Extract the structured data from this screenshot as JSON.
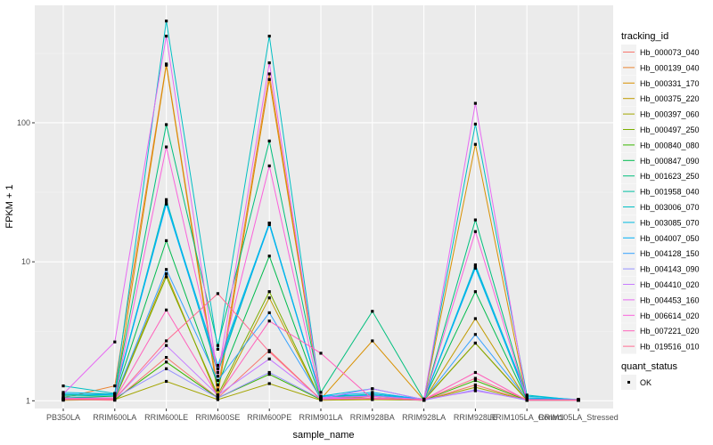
{
  "chart_data": {
    "type": "line",
    "xlabel": "sample_name",
    "ylabel": "FPKM + 1",
    "yscale": "log10",
    "ylim": [
      0.88,
      700
    ],
    "y_ticks": [
      1,
      10,
      100
    ],
    "y_tick_labels": [
      "1",
      "10",
      "100"
    ],
    "grid": true,
    "legend_position": "right",
    "categories": [
      "PB350LA",
      "RRIM600LA",
      "RRIM600LE",
      "RRIM600SE",
      "RRIM600PE",
      "RRIM901LA",
      "RRIM928BA",
      "RRIM928LA",
      "RRIM928LE",
      "RRIM105LA_Control",
      "RRIM105LA_Stressed"
    ],
    "series": [
      {
        "name": "Hb_000073_040",
        "color": "#F8766D",
        "values": [
          1.02,
          1.01,
          2.05,
          1.05,
          2.3,
          1.02,
          1.03,
          1.01,
          1.3,
          1.01,
          1.01
        ]
      },
      {
        "name": "Hb_000139_040",
        "color": "#EA8331",
        "values": [
          1.05,
          1.28,
          265,
          1.2,
          225,
          1.05,
          1.05,
          1.02,
          2.6,
          1.02,
          1.02
        ]
      },
      {
        "name": "Hb_000331_170",
        "color": "#D89000",
        "values": [
          1.03,
          1.05,
          260,
          1.1,
          205,
          1.03,
          2.7,
          1.01,
          70,
          1.02,
          1.01
        ]
      },
      {
        "name": "Hb_000375_220",
        "color": "#C09B00",
        "values": [
          1.02,
          1.03,
          8.2,
          1.05,
          5.5,
          1.02,
          1.05,
          1.01,
          3.9,
          1.01,
          1.01
        ]
      },
      {
        "name": "Hb_000397_060",
        "color": "#A3A500",
        "values": [
          1.01,
          1.02,
          1.38,
          1.02,
          1.33,
          1.01,
          1.02,
          1.01,
          1.25,
          1.01,
          1.01
        ]
      },
      {
        "name": "Hb_000497_250",
        "color": "#7CAE00",
        "values": [
          1.02,
          1.02,
          7.8,
          1.1,
          6.1,
          1.02,
          1.08,
          1.01,
          2.6,
          1.01,
          1.01
        ]
      },
      {
        "name": "Hb_000840_080",
        "color": "#39B600",
        "values": [
          1.02,
          1.02,
          1.9,
          1.05,
          1.55,
          1.02,
          1.04,
          1.01,
          1.4,
          1.01,
          1.01
        ]
      },
      {
        "name": "Hb_000847_090",
        "color": "#00BB4E",
        "values": [
          1.05,
          1.08,
          14.2,
          1.3,
          11,
          1.04,
          1.1,
          1.02,
          6.1,
          1.02,
          1.02
        ]
      },
      {
        "name": "Hb_001623_250",
        "color": "#00BF7D",
        "values": [
          1.1,
          1.12,
          97,
          2.5,
          74,
          1.15,
          4.4,
          1.02,
          20,
          1.05,
          1.02
        ]
      },
      {
        "name": "Hb_001958_040",
        "color": "#00C1A3",
        "values": [
          1.08,
          1.1,
          28,
          1.6,
          19,
          1.08,
          1.1,
          1.02,
          9.2,
          1.03,
          1.01
        ]
      },
      {
        "name": "Hb_003006_070",
        "color": "#00BFC4",
        "values": [
          1.28,
          1.13,
          540,
          2.35,
          420,
          1.05,
          1.12,
          1.03,
          98,
          1.1,
          1.01
        ]
      },
      {
        "name": "Hb_003085_070",
        "color": "#00BAE0",
        "values": [
          1.15,
          1.12,
          27,
          1.8,
          19,
          1.08,
          1.22,
          1.02,
          9.5,
          1.08,
          1.02
        ]
      },
      {
        "name": "Hb_004007_050",
        "color": "#00B0F6",
        "values": [
          1.12,
          1.1,
          26,
          1.7,
          18.5,
          1.07,
          1.15,
          1.02,
          9,
          1.05,
          1.02
        ]
      },
      {
        "name": "Hb_004128_150",
        "color": "#35A2FF",
        "values": [
          1.05,
          1.05,
          8.8,
          1.4,
          4.3,
          1.04,
          1.1,
          1.02,
          3,
          1.03,
          1.01
        ]
      },
      {
        "name": "Hb_004143_090",
        "color": "#9590FF",
        "values": [
          1.03,
          1.05,
          1.7,
          1.05,
          1.6,
          1.03,
          1.05,
          1.01,
          1.2,
          1.01,
          1.01
        ]
      },
      {
        "name": "Hb_004410_020",
        "color": "#C77CFF",
        "values": [
          1.02,
          1.03,
          2.5,
          1.1,
          2,
          1.04,
          1.22,
          1.02,
          1.18,
          1.02,
          1.01
        ]
      },
      {
        "name": "Hb_004453_160",
        "color": "#E76BF3",
        "values": [
          1.12,
          2.65,
          420,
          1.5,
          270,
          1.05,
          1.08,
          1.02,
          138,
          1.02,
          1.02
        ]
      },
      {
        "name": "Hb_006614_020",
        "color": "#FA62DB",
        "values": [
          1.04,
          1.05,
          67,
          1.6,
          49,
          1.04,
          1.05,
          1.01,
          16.5,
          1.02,
          1.02
        ]
      },
      {
        "name": "Hb_007221_020",
        "color": "#FF62BC",
        "values": [
          1.02,
          1.02,
          4.5,
          1.08,
          3.75,
          2.2,
          1.03,
          1.02,
          1.6,
          1.01,
          1.01
        ]
      },
      {
        "name": "Hb_019516_010",
        "color": "#FF6C91",
        "values": [
          1.03,
          1.03,
          2.7,
          5.9,
          2.25,
          1.02,
          1.04,
          1.02,
          1.45,
          1.02,
          1.01
        ]
      }
    ],
    "legend": {
      "title": "tracking_id",
      "shape_legend_title": "quant_status",
      "shape_legend_items": [
        "OK"
      ]
    }
  }
}
